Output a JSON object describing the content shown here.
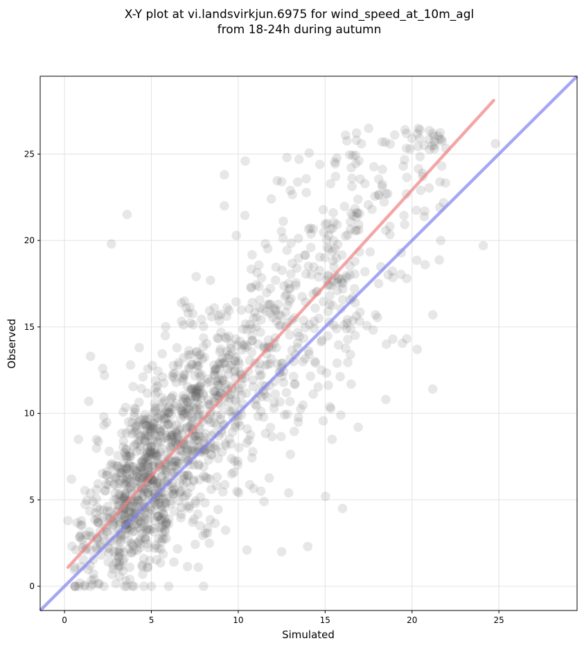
{
  "chart_data": {
    "type": "scatter",
    "title_line1": "X-Y plot at vi.landsvirkjun.6975 for wind_speed_at_10m_agl",
    "title_line2": "from 18-24h during autumn",
    "xlabel": "Simulated",
    "ylabel": "Observed",
    "xlim": [
      -1.4,
      29.5
    ],
    "ylim": [
      -1.4,
      29.5
    ],
    "xticks": [
      0,
      5,
      10,
      15,
      20,
      25
    ],
    "yticks": [
      0,
      5,
      10,
      15,
      20,
      25
    ],
    "xtick_labels": [
      "0",
      "5",
      "10",
      "15",
      "20",
      "25"
    ],
    "ytick_labels": [
      "0",
      "5",
      "10",
      "15",
      "20",
      "25"
    ],
    "grid": true,
    "point_color": "#555555",
    "point_opacity": 0.14,
    "point_count": 1500,
    "fit_line": {
      "color": "#f08080",
      "x": [
        0.2,
        24.7
      ],
      "y": [
        1.1,
        28.1
      ]
    },
    "identity_line": {
      "color": "#8080f0",
      "x": [
        -1.4,
        29.5
      ],
      "y": [
        -1.4,
        29.5
      ]
    },
    "highlight_points": [
      [
        1.5,
        13.3
      ],
      [
        1.4,
        10.7
      ],
      [
        3.6,
        21.5
      ],
      [
        2.7,
        19.8
      ],
      [
        2.2,
        12.6
      ],
      [
        2.3,
        12.2
      ],
      [
        10.4,
        24.6
      ],
      [
        12.8,
        24.8
      ],
      [
        13.5,
        24.7
      ],
      [
        14.7,
        24.4
      ],
      [
        15.6,
        23.7
      ],
      [
        16.8,
        25.8
      ],
      [
        19.0,
        26.1
      ],
      [
        19.6,
        26.4
      ],
      [
        20.0,
        25.9
      ],
      [
        20.7,
        25.5
      ],
      [
        21.3,
        25.3
      ],
      [
        24.8,
        25.6
      ],
      [
        24.1,
        19.7
      ],
      [
        21.2,
        15.7
      ],
      [
        20.3,
        13.7
      ],
      [
        18.9,
        14.3
      ],
      [
        16.0,
        4.5
      ],
      [
        14.0,
        2.3
      ],
      [
        12.5,
        2.0
      ],
      [
        8.0,
        0.0
      ],
      [
        6.0,
        0.0
      ],
      [
        5.0,
        0.0
      ],
      [
        1.5,
        0.0
      ],
      [
        4.0,
        0.0
      ],
      [
        15.4,
        8.5
      ],
      [
        15.9,
        9.9
      ],
      [
        16.9,
        9.2
      ],
      [
        12.9,
        5.4
      ],
      [
        11.3,
        5.5
      ],
      [
        10.5,
        2.1
      ],
      [
        9.2,
        22.0
      ],
      [
        9.2,
        23.8
      ],
      [
        11.9,
        22.4
      ],
      [
        12.5,
        23.4
      ],
      [
        13.0,
        22.9
      ],
      [
        17.7,
        21.8
      ],
      [
        18.6,
        22.7
      ],
      [
        19.7,
        17.8
      ],
      [
        17.9,
        15.7
      ],
      [
        21.6,
        21.9
      ],
      [
        20.5,
        22.9
      ],
      [
        19.5,
        24.3
      ],
      [
        0.4,
        6.2
      ],
      [
        0.8,
        8.5
      ],
      [
        3.8,
        12.8
      ],
      [
        4.3,
        13.8
      ],
      [
        5.8,
        14.5
      ],
      [
        6.9,
        16.5
      ],
      [
        7.0,
        16.1
      ],
      [
        8.4,
        17.7
      ],
      [
        6.3,
        1.4
      ],
      [
        7.7,
        1.1
      ],
      [
        4.5,
        0.7
      ],
      [
        0.2,
        3.8
      ]
    ]
  }
}
